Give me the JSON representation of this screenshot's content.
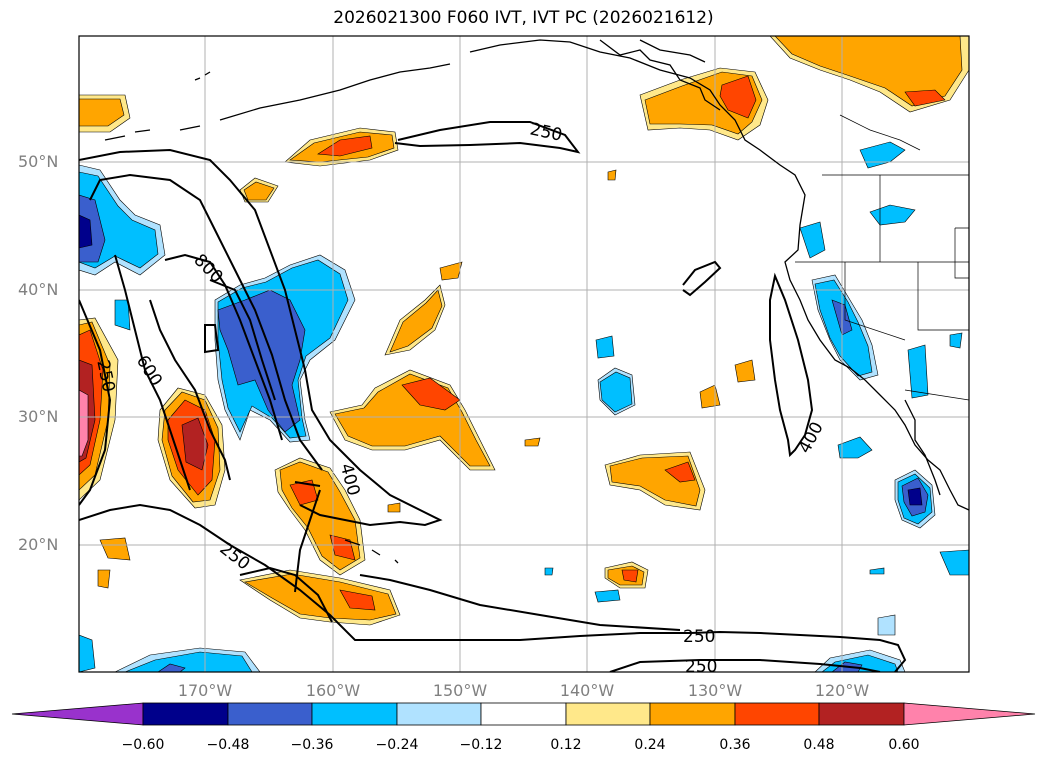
{
  "title": "2026021300 F060 IVT, IVT PC (2026021612)",
  "lat_labels": [
    "50°N",
    "40°N",
    "30°N",
    "20°N"
  ],
  "lon_labels": [
    "170°W",
    "160°W",
    "150°W",
    "140°W",
    "130°W",
    "120°W"
  ],
  "contour_labels": [
    "250",
    "800",
    "600",
    "250",
    "400",
    "250",
    "250",
    "250",
    "400"
  ],
  "colorbar": {
    "ticks": [
      "−0.60",
      "−0.48",
      "−0.36",
      "−0.24",
      "−0.12",
      "0.12",
      "0.24",
      "0.36",
      "0.48",
      "0.60"
    ],
    "colors": [
      "#9932cc",
      "#00008b",
      "#3a5fcd",
      "#00bfff",
      "#b0e2ff",
      "#ffffff",
      "#ffe88a",
      "#ffa500",
      "#ff4500",
      "#b22222",
      "#ff82ab"
    ]
  },
  "colors": {
    "neg_extreme": "#9932cc",
    "neg_048": "#00008b",
    "neg_036": "#3a5fcd",
    "neg_024": "#00bfff",
    "neg_012": "#b0e2ff",
    "pos_012": "#ffe88a",
    "pos_024": "#ffa500",
    "pos_036": "#ff4500",
    "pos_048": "#b22222",
    "pos_060": "#ff82ab"
  }
}
